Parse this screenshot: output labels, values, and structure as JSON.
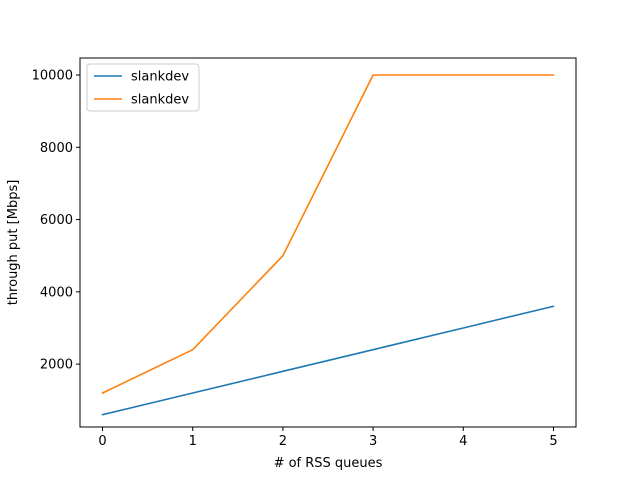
{
  "chart_data": {
    "type": "line",
    "title": "",
    "xlabel": "# of RSS queues",
    "ylabel": "through put [Mbps]",
    "x": [
      0,
      1,
      2,
      3,
      4,
      5
    ],
    "xlim": [
      -0.25,
      5.25
    ],
    "ylim": [
      260,
      10470
    ],
    "xticks": [
      0,
      1,
      2,
      3,
      4,
      5
    ],
    "yticks": [
      2000,
      4000,
      6000,
      8000,
      10000
    ],
    "grid": false,
    "legend_position": "upper-left",
    "series": [
      {
        "name": "slankdev",
        "color": "#1f77b4",
        "values": [
          600,
          1200,
          1800,
          2400,
          3000,
          3600
        ]
      },
      {
        "name": "slankdev",
        "color": "#ff7f0e",
        "values": [
          1200,
          2400,
          5000,
          10000,
          10000,
          10000
        ]
      }
    ]
  }
}
